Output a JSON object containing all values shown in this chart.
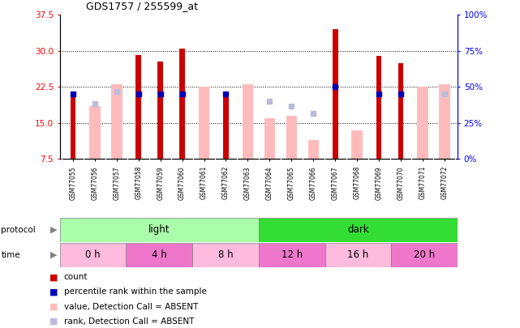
{
  "title": "GDS1757 / 255599_at",
  "samples": [
    "GSM77055",
    "GSM77056",
    "GSM77057",
    "GSM77058",
    "GSM77059",
    "GSM77060",
    "GSM77061",
    "GSM77062",
    "GSM77063",
    "GSM77064",
    "GSM77065",
    "GSM77066",
    "GSM77067",
    "GSM77068",
    "GSM77069",
    "GSM77070",
    "GSM77071",
    "GSM77072"
  ],
  "count_values": [
    21.5,
    null,
    null,
    29.2,
    27.7,
    30.5,
    null,
    21.5,
    null,
    null,
    null,
    null,
    34.5,
    null,
    29.0,
    27.4,
    null,
    null
  ],
  "rank_values": [
    21.0,
    null,
    null,
    21.0,
    21.0,
    21.0,
    null,
    21.0,
    null,
    null,
    null,
    null,
    22.5,
    null,
    21.0,
    21.0,
    null,
    null
  ],
  "absent_value": [
    null,
    18.5,
    23.0,
    null,
    null,
    null,
    22.5,
    null,
    23.0,
    16.0,
    16.5,
    11.5,
    null,
    13.5,
    null,
    null,
    22.5,
    23.0
  ],
  "absent_rank": [
    null,
    19.0,
    21.5,
    null,
    null,
    null,
    null,
    null,
    null,
    19.5,
    18.5,
    17.0,
    null,
    null,
    null,
    null,
    null,
    21.0
  ],
  "ylim_left": [
    7.5,
    37.5
  ],
  "ylim_right": [
    0,
    100
  ],
  "left_ticks": [
    7.5,
    15.0,
    22.5,
    30.0,
    37.5
  ],
  "right_ticks": [
    0,
    25,
    50,
    75,
    100
  ],
  "protocol_groups": [
    {
      "label": "light",
      "start": 0,
      "end": 9,
      "color": "#AAFFAA"
    },
    {
      "label": "dark",
      "start": 9,
      "end": 18,
      "color": "#33DD33"
    }
  ],
  "time_groups": [
    {
      "label": "0 h",
      "start": 0,
      "end": 3,
      "color": "#FFBBDD"
    },
    {
      "label": "4 h",
      "start": 3,
      "end": 6,
      "color": "#EE77CC"
    },
    {
      "label": "8 h",
      "start": 6,
      "end": 9,
      "color": "#FFBBDD"
    },
    {
      "label": "12 h",
      "start": 9,
      "end": 12,
      "color": "#EE77CC"
    },
    {
      "label": "16 h",
      "start": 12,
      "end": 15,
      "color": "#FFBBDD"
    },
    {
      "label": "20 h",
      "start": 15,
      "end": 18,
      "color": "#EE77CC"
    }
  ],
  "bar_color": "#CC0000",
  "rank_dot_color": "#0000BB",
  "absent_bar_color": "#FFBBBB",
  "absent_rank_color": "#BBBBDD",
  "legend_items": [
    {
      "color": "#CC0000",
      "label": "count"
    },
    {
      "color": "#0000BB",
      "label": "percentile rank within the sample"
    },
    {
      "color": "#FFBBBB",
      "label": "value, Detection Call = ABSENT"
    },
    {
      "color": "#BBBBDD",
      "label": "rank, Detection Call = ABSENT"
    }
  ]
}
